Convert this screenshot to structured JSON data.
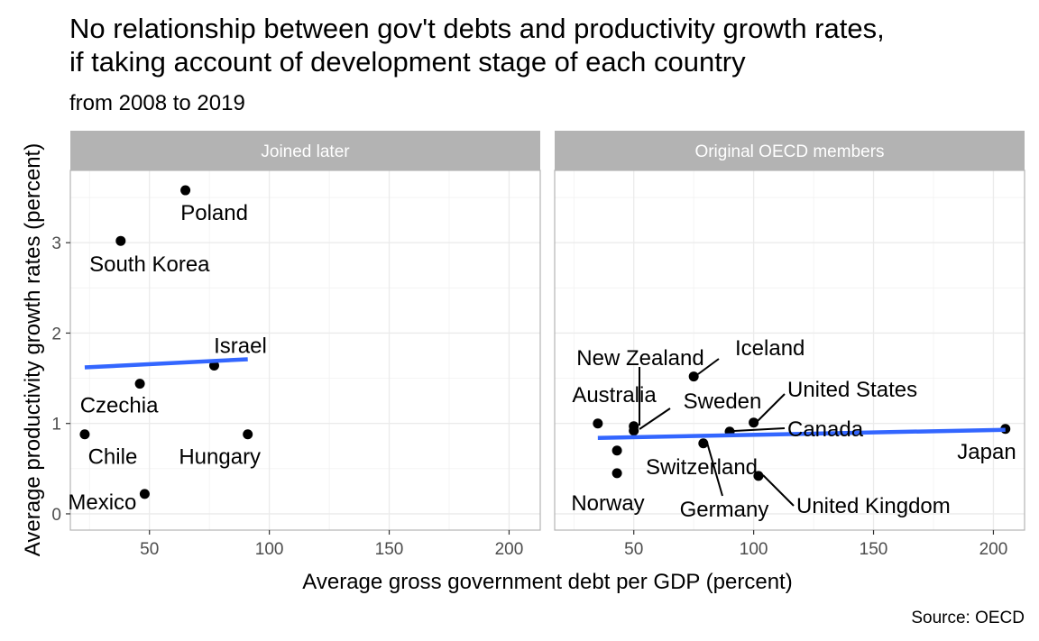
{
  "chart_data": {
    "type": "scatter",
    "title_lines": [
      "No relationship between gov't debts and productivity growth rates,",
      "if taking account of development stage of each country"
    ],
    "subtitle": "from 2008 to 2019",
    "xlabel": "Average gross government debt per GDP (percent)",
    "ylabel": "Average productivity growth rates (percent)",
    "caption": "Source: OECD",
    "xlim": [
      17,
      213
    ],
    "ylim": [
      -0.18,
      3.8
    ],
    "x_ticks": [
      50,
      100,
      150,
      200
    ],
    "y_ticks": [
      0,
      1,
      2,
      3
    ],
    "grid": true,
    "smooth_method": "linear",
    "trend_color": "#3366ff",
    "strip_color": "#b3b3b3",
    "facets": [
      {
        "name": "Joined later",
        "points": [
          {
            "label": "Poland",
            "x": 65,
            "y": 3.58
          },
          {
            "label": "South Korea",
            "x": 38,
            "y": 3.02
          },
          {
            "label": "Israel",
            "x": 77,
            "y": 1.64
          },
          {
            "label": "Czechia",
            "x": 46,
            "y": 1.44
          },
          {
            "label": "Chile",
            "x": 23,
            "y": 0.88
          },
          {
            "label": "Hungary",
            "x": 91,
            "y": 0.88
          },
          {
            "label": "Mexico",
            "x": 48,
            "y": 0.22
          }
        ],
        "trend": {
          "x": [
            23,
            91
          ],
          "y": [
            1.62,
            1.71
          ]
        }
      },
      {
        "name": "Original OECD members",
        "points": [
          {
            "label": "Iceland",
            "x": 75,
            "y": 1.52
          },
          {
            "label": "New Zealand",
            "x": 50,
            "y": 0.97
          },
          {
            "label": "Australia",
            "x": 35,
            "y": 1.0
          },
          {
            "label": "Sweden",
            "x": 50,
            "y": 0.92
          },
          {
            "label": "United States",
            "x": 100,
            "y": 1.01
          },
          {
            "label": "Canada",
            "x": 90,
            "y": 0.91
          },
          {
            "label": "Japan",
            "x": 205,
            "y": 0.94
          },
          {
            "label": "Switzerland",
            "x": 43,
            "y": 0.7
          },
          {
            "label": "Germany",
            "x": 79,
            "y": 0.78
          },
          {
            "label": "Norway",
            "x": 43,
            "y": 0.45
          },
          {
            "label": "United Kingdom",
            "x": 102,
            "y": 0.42
          }
        ],
        "trend": {
          "x": [
            35,
            205
          ],
          "y": [
            0.84,
            0.93
          ]
        }
      }
    ]
  }
}
